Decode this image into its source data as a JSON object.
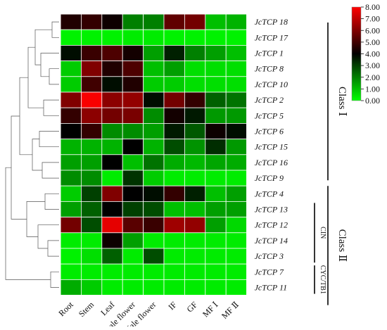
{
  "chart_data": {
    "type": "heatmap",
    "title": "",
    "xlabel": "",
    "ylabel": "",
    "columns": [
      "Root",
      "Stem",
      "Leaf",
      "Female flower",
      "Male flower",
      "IF",
      "GF",
      "MF Ⅰ",
      "MF Ⅱ"
    ],
    "rows": [
      "JcTCP 18",
      "JcTCP 17",
      "JcTCP 1",
      "JcTCP 8",
      "JcTCP 10",
      "JcTCP 2",
      "JcTCP 5",
      "JcTCP 6",
      "JcTCP 15",
      "JcTCP 16",
      "JcTCP 9",
      "JcTCP 4",
      "JcTCP 13",
      "JcTCP 12",
      "JcTCP 14",
      "JcTCP 3",
      "JcTCP 7",
      "JcTCP 11"
    ],
    "values": [
      [
        4.5,
        4.8,
        4.2,
        2.0,
        2.0,
        5.5,
        5.8,
        1.0,
        1.2
      ],
      [
        0.2,
        0.2,
        0.2,
        0.3,
        0.3,
        0.2,
        0.2,
        0.2,
        0.2
      ],
      [
        3.8,
        4.9,
        5.2,
        4.3,
        1.5,
        3.5,
        2.0,
        1.5,
        1.0
      ],
      [
        0.8,
        6.0,
        4.5,
        5.2,
        1.0,
        1.5,
        0.5,
        0.5,
        0.5
      ],
      [
        0.8,
        5.0,
        3.8,
        4.5,
        0.8,
        0.8,
        0.5,
        0.5,
        0.5
      ],
      [
        6.0,
        7.9,
        6.2,
        6.3,
        3.8,
        5.8,
        4.8,
        2.5,
        2.2
      ],
      [
        4.8,
        6.2,
        5.8,
        5.9,
        1.8,
        4.3,
        3.6,
        1.6,
        1.6
      ],
      [
        4.0,
        4.8,
        1.8,
        1.8,
        1.5,
        3.6,
        2.6,
        4.2,
        3.8
      ],
      [
        1.2,
        1.2,
        1.2,
        4.0,
        1.2,
        2.8,
        1.7,
        3.3,
        1.6
      ],
      [
        1.5,
        1.5,
        4.0,
        1.0,
        2.2,
        1.3,
        1.1,
        1.4,
        1.3
      ],
      [
        1.8,
        1.8,
        0.3,
        3.2,
        0.8,
        0.3,
        0.3,
        0.3,
        0.3
      ],
      [
        0.8,
        3.0,
        6.0,
        4.0,
        3.8,
        4.8,
        3.5,
        1.0,
        1.5
      ],
      [
        1.5,
        2.5,
        4.0,
        3.0,
        2.8,
        1.0,
        1.0,
        1.5,
        1.5
      ],
      [
        5.8,
        2.8,
        7.6,
        5.4,
        4.9,
        6.5,
        6.3,
        1.5,
        0.6
      ],
      [
        0.3,
        0.3,
        4.2,
        1.5,
        0.3,
        0.3,
        0.3,
        0.3,
        0.3
      ],
      [
        0.2,
        0.5,
        2.5,
        0.3,
        2.8,
        0.3,
        0.3,
        0.3,
        0.3
      ],
      [
        0.3,
        0.3,
        0.3,
        0.3,
        0.3,
        0.3,
        0.3,
        0.3,
        0.3
      ],
      [
        1.3,
        0.8,
        0.3,
        0.3,
        0.3,
        0.3,
        0.3,
        0.3,
        0.3
      ]
    ],
    "colorbar": {
      "min": 0.0,
      "max": 8.0,
      "ticks": [
        "8.00",
        "7.00",
        "6.00",
        "5.00",
        "4.00",
        "3.00",
        "2.00",
        "1.00",
        "0.00"
      ],
      "color_low": "#00ff00",
      "color_mid": "#000000",
      "color_high": "#ff0000"
    },
    "classes": [
      {
        "label": "Class Ⅰ",
        "from_row": 0,
        "to_row": 10
      },
      {
        "label": "Class Ⅱ",
        "from_row": 11,
        "to_row": 17
      }
    ],
    "subclasses": [
      {
        "label": "CIN",
        "from_row": 12,
        "to_row": 15
      },
      {
        "label": "CYC/TB1",
        "from_row": 16,
        "to_row": 17
      }
    ]
  }
}
